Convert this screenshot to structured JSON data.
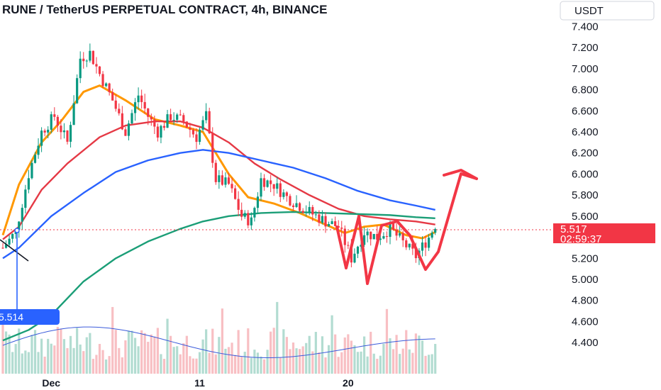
{
  "header": {
    "title": "RUNE / TetherUS PERPETUAL CONTRACT, 4h, BINANCE",
    "currency_button": "USDT"
  },
  "price_tag": {
    "value": "5.517",
    "countdown": "02:59:37",
    "color": "#f23645"
  },
  "left_tag": {
    "value": "5.514",
    "color": "#2962ff"
  },
  "colors": {
    "up": "#089981",
    "down": "#f23645",
    "ema_orange": "#ff9800",
    "ema_red": "#e53945",
    "ema_blue": "#2962ff",
    "ema_green": "#1b9e77",
    "volume_line": "#3b5bdb",
    "annotation": "#f23645"
  },
  "chart_data": {
    "type": "candlestick",
    "title": "RUNE / TetherUS PERPETUAL CONTRACT, 4h, BINANCE",
    "ylim": [
      4.3,
      7.45
    ],
    "y_ticks": [
      "7.400",
      "7.200",
      "7.000",
      "6.800",
      "6.600",
      "6.400",
      "6.200",
      "6.000",
      "5.800",
      "5.600",
      "5.400",
      "5.200",
      "5.000",
      "4.800",
      "4.600",
      "4.400"
    ],
    "y_tick_values": [
      7.4,
      7.2,
      7.0,
      6.8,
      6.6,
      6.4,
      6.2,
      6.0,
      5.8,
      5.6,
      5.4,
      5.2,
      5.0,
      4.8,
      4.6,
      4.4
    ],
    "x_ticks": [
      {
        "label": "Dec",
        "bar": 15
      },
      {
        "label": "11",
        "bar": 61
      },
      {
        "label": "20",
        "bar": 107
      }
    ],
    "current_price": 5.517,
    "moving_averages": [
      {
        "color": "#ff9800",
        "points": [
          [
            0,
            5.42
          ],
          [
            5,
            5.9
          ],
          [
            12,
            6.3
          ],
          [
            18,
            6.5
          ],
          [
            25,
            6.78
          ],
          [
            30,
            6.84
          ],
          [
            38,
            6.7
          ],
          [
            47,
            6.52
          ],
          [
            55,
            6.46
          ],
          [
            62,
            6.4
          ],
          [
            70,
            6.0
          ],
          [
            76,
            5.78
          ],
          [
            84,
            5.72
          ],
          [
            92,
            5.63
          ],
          [
            100,
            5.52
          ],
          [
            106,
            5.44
          ],
          [
            112,
            5.5
          ],
          [
            118,
            5.52
          ],
          [
            125,
            5.42
          ],
          [
            130,
            5.39
          ],
          [
            134,
            5.45
          ]
        ]
      },
      {
        "color": "#e53945",
        "points": [
          [
            0,
            5.38
          ],
          [
            5,
            5.5
          ],
          [
            12,
            5.85
          ],
          [
            20,
            6.1
          ],
          [
            30,
            6.35
          ],
          [
            38,
            6.46
          ],
          [
            47,
            6.5
          ],
          [
            55,
            6.5
          ],
          [
            62,
            6.44
          ],
          [
            70,
            6.3
          ],
          [
            78,
            6.1
          ],
          [
            86,
            5.95
          ],
          [
            95,
            5.8
          ],
          [
            104,
            5.67
          ],
          [
            112,
            5.6
          ],
          [
            120,
            5.57
          ],
          [
            128,
            5.55
          ],
          [
            134,
            5.52
          ]
        ]
      },
      {
        "color": "#2962ff",
        "points": [
          [
            0,
            5.2
          ],
          [
            5,
            5.3
          ],
          [
            15,
            5.6
          ],
          [
            25,
            5.82
          ],
          [
            35,
            6.02
          ],
          [
            45,
            6.13
          ],
          [
            55,
            6.2
          ],
          [
            62,
            6.23
          ],
          [
            70,
            6.2
          ],
          [
            80,
            6.13
          ],
          [
            90,
            6.06
          ],
          [
            100,
            5.96
          ],
          [
            110,
            5.84
          ],
          [
            120,
            5.75
          ],
          [
            128,
            5.7
          ],
          [
            134,
            5.66
          ]
        ]
      },
      {
        "color": "#1b9e77",
        "points": [
          [
            0,
            4.42
          ],
          [
            8,
            4.52
          ],
          [
            15,
            4.66
          ],
          [
            25,
            4.98
          ],
          [
            35,
            5.2
          ],
          [
            45,
            5.36
          ],
          [
            55,
            5.48
          ],
          [
            62,
            5.55
          ],
          [
            70,
            5.6
          ],
          [
            80,
            5.63
          ],
          [
            90,
            5.64
          ],
          [
            100,
            5.63
          ],
          [
            110,
            5.62
          ],
          [
            120,
            5.61
          ],
          [
            128,
            5.59
          ],
          [
            134,
            5.58
          ]
        ]
      }
    ]
  }
}
